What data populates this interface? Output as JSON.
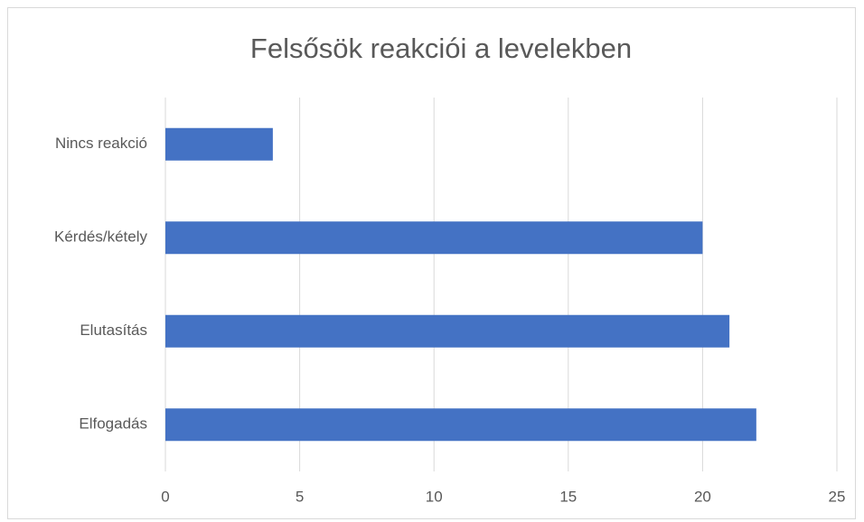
{
  "chart_data": {
    "type": "hbar",
    "title": "Felsősök reakciói a levelekben",
    "categories": [
      "Nincs reakció",
      "Kérdés/kétely",
      "Elutasítás",
      "Elfogadás"
    ],
    "values": [
      4,
      20,
      21,
      22
    ],
    "color": "#4472c4",
    "xlim": [
      0,
      25
    ],
    "xticks": [
      0,
      5,
      10,
      15,
      20,
      25
    ],
    "grid": true
  }
}
